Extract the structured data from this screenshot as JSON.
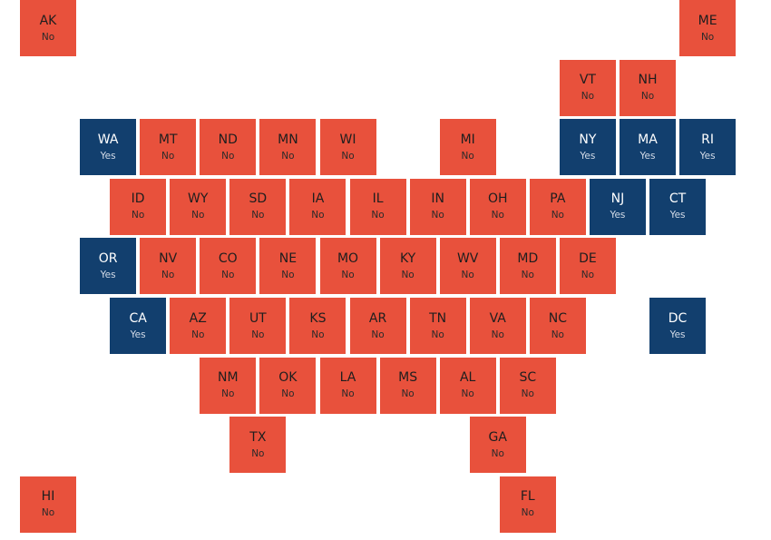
{
  "colors": {
    "No": "#e8513c",
    "Yes": "#123f6e"
  },
  "states": [
    {
      "abbr": "AK",
      "value": "No",
      "col": 0,
      "row": 0
    },
    {
      "abbr": "ME",
      "value": "No",
      "col": 11,
      "row": 0
    },
    {
      "abbr": "VT",
      "value": "No",
      "col": 9,
      "row": 1
    },
    {
      "abbr": "NH",
      "value": "No",
      "col": 10,
      "row": 1
    },
    {
      "abbr": "WA",
      "value": "Yes",
      "col": 1,
      "row": 2
    },
    {
      "abbr": "MT",
      "value": "No",
      "col": 2,
      "row": 2
    },
    {
      "abbr": "ND",
      "value": "No",
      "col": 3,
      "row": 2
    },
    {
      "abbr": "MN",
      "value": "No",
      "col": 4,
      "row": 2
    },
    {
      "abbr": "WI",
      "value": "No",
      "col": 5,
      "row": 2
    },
    {
      "abbr": "MI",
      "value": "No",
      "col": 7,
      "row": 2
    },
    {
      "abbr": "NY",
      "value": "Yes",
      "col": 9,
      "row": 2
    },
    {
      "abbr": "MA",
      "value": "Yes",
      "col": 10,
      "row": 2
    },
    {
      "abbr": "RI",
      "value": "Yes",
      "col": 11,
      "row": 2
    },
    {
      "abbr": "ID",
      "value": "No",
      "col": 1.5,
      "row": 3
    },
    {
      "abbr": "WY",
      "value": "No",
      "col": 2.5,
      "row": 3
    },
    {
      "abbr": "SD",
      "value": "No",
      "col": 3.5,
      "row": 3
    },
    {
      "abbr": "IA",
      "value": "No",
      "col": 4.5,
      "row": 3
    },
    {
      "abbr": "IL",
      "value": "No",
      "col": 5.5,
      "row": 3
    },
    {
      "abbr": "IN",
      "value": "No",
      "col": 6.5,
      "row": 3
    },
    {
      "abbr": "OH",
      "value": "No",
      "col": 7.5,
      "row": 3
    },
    {
      "abbr": "PA",
      "value": "No",
      "col": 8.5,
      "row": 3
    },
    {
      "abbr": "NJ",
      "value": "Yes",
      "col": 9.5,
      "row": 3
    },
    {
      "abbr": "CT",
      "value": "Yes",
      "col": 10.5,
      "row": 3
    },
    {
      "abbr": "OR",
      "value": "Yes",
      "col": 1,
      "row": 4
    },
    {
      "abbr": "NV",
      "value": "No",
      "col": 2,
      "row": 4
    },
    {
      "abbr": "CO",
      "value": "No",
      "col": 3,
      "row": 4
    },
    {
      "abbr": "NE",
      "value": "No",
      "col": 4,
      "row": 4
    },
    {
      "abbr": "MO",
      "value": "No",
      "col": 5,
      "row": 4
    },
    {
      "abbr": "KY",
      "value": "No",
      "col": 6,
      "row": 4
    },
    {
      "abbr": "WV",
      "value": "No",
      "col": 7,
      "row": 4
    },
    {
      "abbr": "MD",
      "value": "No",
      "col": 8,
      "row": 4
    },
    {
      "abbr": "DE",
      "value": "No",
      "col": 9,
      "row": 4
    },
    {
      "abbr": "CA",
      "value": "Yes",
      "col": 1.5,
      "row": 5
    },
    {
      "abbr": "AZ",
      "value": "No",
      "col": 2.5,
      "row": 5
    },
    {
      "abbr": "UT",
      "value": "No",
      "col": 3.5,
      "row": 5
    },
    {
      "abbr": "KS",
      "value": "No",
      "col": 4.5,
      "row": 5
    },
    {
      "abbr": "AR",
      "value": "No",
      "col": 5.5,
      "row": 5
    },
    {
      "abbr": "TN",
      "value": "No",
      "col": 6.5,
      "row": 5
    },
    {
      "abbr": "VA",
      "value": "No",
      "col": 7.5,
      "row": 5
    },
    {
      "abbr": "NC",
      "value": "No",
      "col": 8.5,
      "row": 5
    },
    {
      "abbr": "DC",
      "value": "Yes",
      "col": 10.5,
      "row": 5
    },
    {
      "abbr": "NM",
      "value": "No",
      "col": 3,
      "row": 6
    },
    {
      "abbr": "OK",
      "value": "No",
      "col": 4,
      "row": 6
    },
    {
      "abbr": "LA",
      "value": "No",
      "col": 5,
      "row": 6
    },
    {
      "abbr": "MS",
      "value": "No",
      "col": 6,
      "row": 6
    },
    {
      "abbr": "AL",
      "value": "No",
      "col": 7,
      "row": 6
    },
    {
      "abbr": "SC",
      "value": "No",
      "col": 8,
      "row": 6
    },
    {
      "abbr": "TX",
      "value": "No",
      "col": 3.5,
      "row": 7
    },
    {
      "abbr": "GA",
      "value": "No",
      "col": 7.5,
      "row": 7
    },
    {
      "abbr": "HI",
      "value": "No",
      "col": 0,
      "row": 8
    },
    {
      "abbr": "FL",
      "value": "No",
      "col": 8,
      "row": 8
    }
  ]
}
